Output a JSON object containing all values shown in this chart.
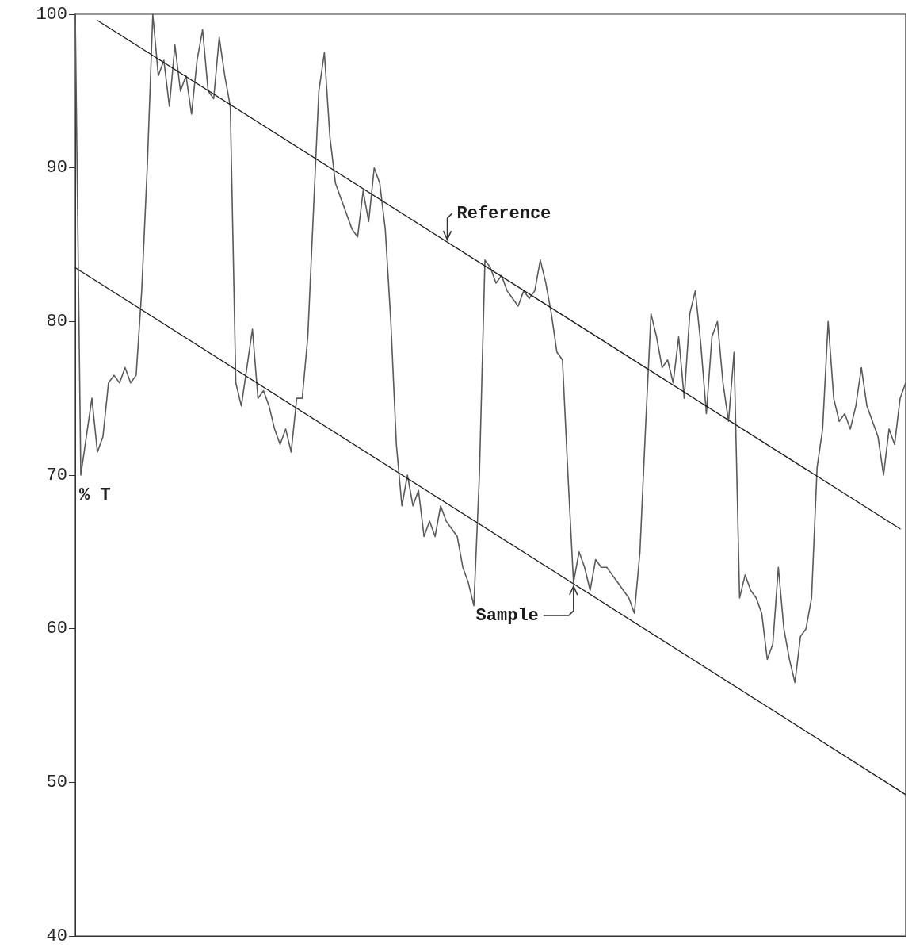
{
  "chart_data": {
    "type": "line",
    "ylabel": "% T",
    "marker": "none",
    "line_style": "solid",
    "categories": [
      null,
      null,
      null,
      null,
      null,
      null,
      null,
      null,
      null,
      null,
      null,
      null,
      null,
      null,
      null,
      null,
      null,
      null,
      null,
      null,
      null,
      null,
      null,
      null,
      null,
      null,
      null,
      null,
      null,
      null,
      null,
      null,
      null,
      null,
      null,
      null,
      null,
      null,
      null,
      null,
      null,
      null,
      null,
      null,
      null,
      null,
      null,
      null,
      null,
      null,
      null,
      null,
      null,
      null,
      null,
      null,
      null,
      null,
      null,
      null,
      null,
      null,
      null,
      null,
      null,
      null,
      null,
      null,
      null,
      null,
      null,
      null,
      null,
      null,
      null,
      null,
      null,
      null,
      null,
      null,
      null,
      null,
      null,
      null,
      null,
      null,
      null,
      null,
      null,
      null,
      null,
      null,
      null,
      null,
      null,
      null,
      null,
      null,
      null,
      null,
      null,
      null,
      null,
      null,
      null,
      null,
      null,
      null,
      null,
      null,
      null,
      null,
      null,
      null,
      null,
      null,
      null,
      null,
      null,
      null,
      null,
      null,
      null,
      null,
      null,
      null,
      null,
      null,
      null,
      null,
      null,
      null,
      null,
      null,
      null,
      null,
      null,
      null,
      null,
      null,
      null,
      null,
      null,
      null,
      null,
      null,
      null,
      null,
      null,
      null,
      null
    ],
    "ylim": [
      40,
      100
    ],
    "yticks": [
      40,
      50,
      60,
      70,
      80,
      90,
      100
    ],
    "series": [
      {
        "color": "#5a5a5a",
        "values": [
          100,
          70,
          72.5,
          75,
          71.5,
          72.5,
          76,
          76.5,
          76,
          77,
          76,
          76.5,
          82,
          90,
          100,
          96,
          97,
          94,
          98,
          95,
          96,
          93.5,
          97,
          99,
          95,
          94.5,
          98.5,
          96,
          94,
          76,
          74.5,
          77,
          79.5,
          75,
          75.5,
          74.5,
          73,
          72,
          73,
          71.5,
          75,
          75,
          79,
          87,
          95,
          97.5,
          92,
          89,
          88,
          87,
          86,
          85.5,
          88.5,
          86.5,
          90,
          89,
          86,
          80,
          72,
          68,
          70,
          68,
          69,
          66,
          67,
          66,
          68,
          67,
          66.5,
          66,
          64,
          63,
          61.5,
          70,
          84,
          83.5,
          82.5,
          83,
          82,
          81.5,
          81,
          82,
          81.5,
          82,
          84,
          82.5,
          80.5,
          78,
          77.5,
          70,
          63,
          65,
          64,
          62.5,
          64.5,
          64,
          64,
          63.5,
          63,
          62.5,
          62,
          61,
          65,
          73,
          80.5,
          79,
          77,
          77.5,
          76,
          79,
          75,
          80.5,
          82,
          78.5,
          74,
          79,
          80,
          76,
          73.5,
          78,
          62,
          63.5,
          62.5,
          62,
          61,
          58,
          59,
          64,
          60,
          58,
          56.5,
          59.5,
          60,
          62,
          70.5,
          73,
          80,
          75,
          73.5,
          74,
          73,
          74.5,
          77,
          74.5,
          73.5,
          72.5,
          70,
          73,
          72,
          75,
          76
        ]
      },
      {
        "name": "Reference",
        "color": "#1a1a1a",
        "values": [
          null,
          null,
          null,
          null,
          99.6,
          null,
          null,
          null,
          null,
          null,
          null,
          null,
          null,
          null,
          null,
          null,
          null,
          null,
          null,
          null,
          null,
          null,
          null,
          null,
          null,
          null,
          null,
          null,
          null,
          null,
          null,
          null,
          null,
          null,
          null,
          null,
          null,
          null,
          null,
          null,
          null,
          null,
          null,
          null,
          null,
          null,
          null,
          null,
          null,
          null,
          null,
          null,
          null,
          null,
          null,
          null,
          null,
          null,
          null,
          null,
          null,
          null,
          null,
          null,
          null,
          null,
          null,
          null,
          null,
          null,
          null,
          null,
          null,
          null,
          null,
          null,
          null,
          null,
          null,
          null,
          null,
          null,
          null,
          null,
          null,
          null,
          null,
          null,
          null,
          null,
          null,
          null,
          null,
          null,
          null,
          null,
          null,
          null,
          null,
          null,
          null,
          null,
          null,
          null,
          null,
          null,
          null,
          null,
          null,
          null,
          null,
          null,
          null,
          null,
          null,
          null,
          null,
          null,
          null,
          null,
          null,
          null,
          null,
          null,
          null,
          null,
          null,
          null,
          null,
          null,
          null,
          null,
          null,
          null,
          null,
          null,
          null,
          null,
          null,
          null,
          null,
          null,
          null,
          null,
          null,
          null,
          null,
          null,
          null,
          66.5,
          null
        ]
      },
      {
        "name": "Sample",
        "color": "#1a1a1a",
        "values": [
          83.5,
          null,
          null,
          null,
          null,
          null,
          null,
          null,
          null,
          null,
          null,
          null,
          null,
          null,
          null,
          null,
          null,
          null,
          null,
          null,
          null,
          null,
          null,
          null,
          null,
          null,
          null,
          null,
          null,
          null,
          null,
          null,
          null,
          null,
          null,
          null,
          null,
          null,
          null,
          null,
          null,
          null,
          null,
          null,
          null,
          null,
          null,
          null,
          null,
          null,
          null,
          null,
          null,
          null,
          null,
          null,
          null,
          null,
          null,
          null,
          null,
          null,
          null,
          null,
          null,
          null,
          null,
          null,
          null,
          null,
          null,
          null,
          null,
          null,
          null,
          null,
          null,
          null,
          null,
          null,
          null,
          null,
          null,
          null,
          null,
          null,
          null,
          null,
          null,
          null,
          null,
          null,
          null,
          null,
          null,
          null,
          null,
          null,
          null,
          null,
          null,
          null,
          null,
          null,
          null,
          null,
          null,
          null,
          null,
          null,
          null,
          null,
          null,
          null,
          null,
          null,
          null,
          null,
          null,
          null,
          null,
          null,
          null,
          null,
          null,
          null,
          null,
          null,
          null,
          null,
          null,
          null,
          null,
          null,
          null,
          null,
          null,
          null,
          null,
          null,
          null,
          null,
          null,
          null,
          null,
          null,
          null,
          null,
          null,
          null,
          49.2
        ]
      }
    ]
  }
}
